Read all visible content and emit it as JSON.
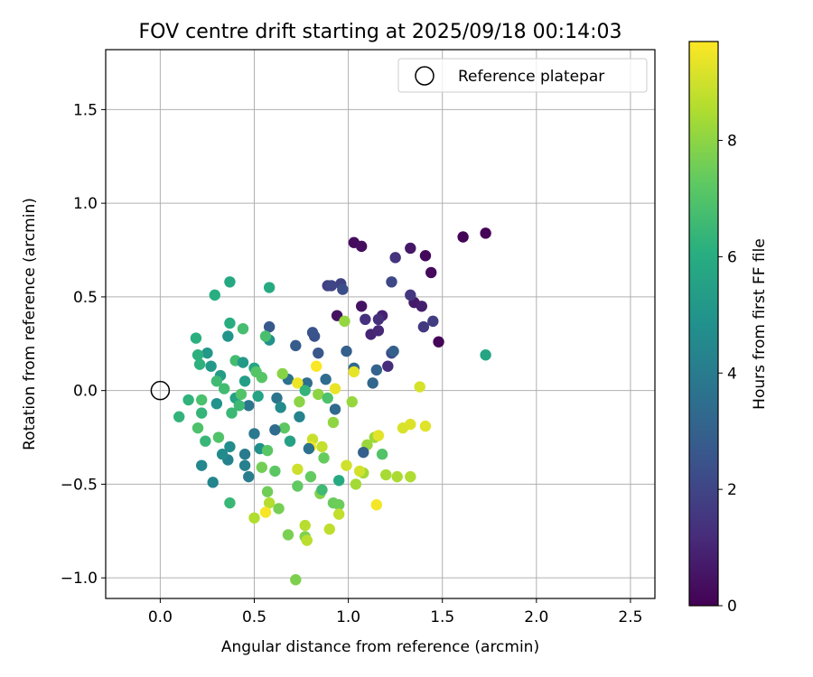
{
  "chart_data": {
    "type": "scatter",
    "title": "FOV centre drift starting at 2025/09/18 00:14:03",
    "xlabel": "Angular distance from reference (arcmin)",
    "ylabel": "Rotation from reference (arcmin)",
    "xlim": [
      -0.29,
      2.63
    ],
    "ylim": [
      -1.11,
      1.82
    ],
    "xticks": [
      0.0,
      0.5,
      1.0,
      1.5,
      2.0,
      2.5
    ],
    "yticks": [
      -1.0,
      -0.5,
      0.0,
      0.5,
      1.0,
      1.5
    ],
    "xtick_labels": [
      "0.0",
      "0.5",
      "1.0",
      "1.5",
      "2.0",
      "2.5"
    ],
    "ytick_labels": [
      "−1.0",
      "−0.5",
      "0.0",
      "0.5",
      "1.0",
      "1.5"
    ],
    "grid": true,
    "legend": {
      "placement": "top-right",
      "entries": [
        "Reference platepar"
      ]
    },
    "reference_point": {
      "x": 0.0,
      "y": 0.0,
      "label": "Reference platepar"
    },
    "colorbar": {
      "label": "Hours from first FF file",
      "colormap": "viridis",
      "range": [
        0,
        9.7
      ],
      "ticks": [
        0,
        2,
        4,
        6,
        8
      ],
      "tick_labels": [
        "0",
        "2",
        "4",
        "6",
        "8"
      ]
    },
    "points": [
      {
        "x": 1.73,
        "y": 0.84,
        "t": 0.05
      },
      {
        "x": 1.61,
        "y": 0.82,
        "t": 0.1
      },
      {
        "x": 1.48,
        "y": 0.26,
        "t": 0.15
      },
      {
        "x": 1.41,
        "y": 0.72,
        "t": 0.2
      },
      {
        "x": 1.44,
        "y": 0.63,
        "t": 0.25
      },
      {
        "x": 1.03,
        "y": 0.79,
        "t": 0.3
      },
      {
        "x": 1.07,
        "y": 0.77,
        "t": 0.35
      },
      {
        "x": 0.94,
        "y": 0.4,
        "t": 0.4
      },
      {
        "x": 1.07,
        "y": 0.45,
        "t": 0.5
      },
      {
        "x": 1.33,
        "y": 0.76,
        "t": 0.6
      },
      {
        "x": 1.35,
        "y": 0.47,
        "t": 0.7
      },
      {
        "x": 1.39,
        "y": 0.45,
        "t": 0.8
      },
      {
        "x": 1.18,
        "y": 0.4,
        "t": 0.9
      },
      {
        "x": 1.12,
        "y": 0.3,
        "t": 1.0
      },
      {
        "x": 1.16,
        "y": 0.32,
        "t": 1.1
      },
      {
        "x": 1.21,
        "y": 0.13,
        "t": 1.2
      },
      {
        "x": 1.16,
        "y": 0.38,
        "t": 1.3
      },
      {
        "x": 1.09,
        "y": 0.38,
        "t": 1.35
      },
      {
        "x": 1.25,
        "y": 0.71,
        "t": 1.4
      },
      {
        "x": 1.33,
        "y": 0.51,
        "t": 1.5
      },
      {
        "x": 1.4,
        "y": 0.34,
        "t": 1.6
      },
      {
        "x": 1.45,
        "y": 0.37,
        "t": 1.7
      },
      {
        "x": 0.89,
        "y": 0.56,
        "t": 1.8
      },
      {
        "x": 0.96,
        "y": 0.57,
        "t": 1.9
      },
      {
        "x": 0.91,
        "y": 0.56,
        "t": 2.0
      },
      {
        "x": 1.23,
        "y": 0.58,
        "t": 2.1
      },
      {
        "x": 1.23,
        "y": 0.2,
        "t": 2.2
      },
      {
        "x": 0.97,
        "y": 0.54,
        "t": 2.3
      },
      {
        "x": 0.82,
        "y": 0.29,
        "t": 2.4
      },
      {
        "x": 0.81,
        "y": 0.31,
        "t": 2.5
      },
      {
        "x": 0.84,
        "y": 0.2,
        "t": 2.6
      },
      {
        "x": 0.58,
        "y": 0.34,
        "t": 2.7
      },
      {
        "x": 0.72,
        "y": 0.24,
        "t": 2.8
      },
      {
        "x": 0.99,
        "y": 0.21,
        "t": 2.9
      },
      {
        "x": 1.24,
        "y": 0.21,
        "t": 3.0
      },
      {
        "x": 1.15,
        "y": 0.11,
        "t": 3.1
      },
      {
        "x": 1.13,
        "y": 0.04,
        "t": 3.2
      },
      {
        "x": 1.03,
        "y": 0.12,
        "t": 3.3
      },
      {
        "x": 0.88,
        "y": 0.06,
        "t": 3.4
      },
      {
        "x": 0.78,
        "y": 0.04,
        "t": 3.5
      },
      {
        "x": 0.68,
        "y": 0.06,
        "t": 3.6
      },
      {
        "x": 0.62,
        "y": -0.04,
        "t": 3.7
      },
      {
        "x": 0.47,
        "y": -0.08,
        "t": 3.8
      },
      {
        "x": 0.5,
        "y": -0.23,
        "t": 3.9
      },
      {
        "x": 0.45,
        "y": -0.34,
        "t": 4.0
      },
      {
        "x": 0.47,
        "y": -0.46,
        "t": 4.1
      },
      {
        "x": 0.45,
        "y": -0.4,
        "t": 4.2
      },
      {
        "x": 0.36,
        "y": -0.37,
        "t": 4.3
      },
      {
        "x": 0.28,
        "y": -0.49,
        "t": 4.4
      },
      {
        "x": 0.22,
        "y": -0.4,
        "t": 4.5
      },
      {
        "x": 0.33,
        "y": -0.34,
        "t": 4.6
      },
      {
        "x": 0.37,
        "y": -0.3,
        "t": 4.7
      },
      {
        "x": 0.53,
        "y": -0.31,
        "t": 4.8
      },
      {
        "x": 0.58,
        "y": 0.27,
        "t": 4.9
      },
      {
        "x": 0.36,
        "y": 0.29,
        "t": 5.0
      },
      {
        "x": 0.25,
        "y": 0.2,
        "t": 5.1
      },
      {
        "x": 0.27,
        "y": 0.13,
        "t": 5.2
      },
      {
        "x": 0.32,
        "y": 0.08,
        "t": 5.3
      },
      {
        "x": 0.45,
        "y": 0.05,
        "t": 5.4
      },
      {
        "x": 0.4,
        "y": -0.04,
        "t": 5.5
      },
      {
        "x": 0.52,
        "y": -0.03,
        "t": 5.6
      },
      {
        "x": 0.5,
        "y": 0.12,
        "t": 5.7
      },
      {
        "x": 0.37,
        "y": 0.58,
        "t": 5.8
      },
      {
        "x": 0.58,
        "y": 0.55,
        "t": 5.9
      },
      {
        "x": 0.37,
        "y": 0.36,
        "t": 6.0
      },
      {
        "x": 0.29,
        "y": 0.51,
        "t": 6.05
      },
      {
        "x": 0.19,
        "y": 0.28,
        "t": 6.1
      },
      {
        "x": 0.2,
        "y": 0.19,
        "t": 6.15
      },
      {
        "x": 0.21,
        "y": 0.14,
        "t": 6.2
      },
      {
        "x": 0.15,
        "y": -0.05,
        "t": 6.25
      },
      {
        "x": 0.1,
        "y": -0.14,
        "t": 6.3
      },
      {
        "x": 0.22,
        "y": -0.12,
        "t": 6.35
      },
      {
        "x": 0.24,
        "y": -0.27,
        "t": 6.4
      },
      {
        "x": 0.37,
        "y": -0.6,
        "t": 6.45
      },
      {
        "x": 0.38,
        "y": -0.12,
        "t": 6.5
      },
      {
        "x": 0.42,
        "y": -0.08,
        "t": 6.55
      },
      {
        "x": 0.3,
        "y": 0.05,
        "t": 6.6
      },
      {
        "x": 0.34,
        "y": 0.01,
        "t": 6.65
      },
      {
        "x": 0.4,
        "y": 0.16,
        "t": 6.7
      },
      {
        "x": 0.44,
        "y": 0.33,
        "t": 6.75
      },
      {
        "x": 0.56,
        "y": 0.29,
        "t": 6.8
      },
      {
        "x": 0.22,
        "y": -0.05,
        "t": 6.85
      },
      {
        "x": 0.2,
        "y": -0.2,
        "t": 6.9
      },
      {
        "x": 0.31,
        "y": -0.25,
        "t": 6.95
      },
      {
        "x": 0.43,
        "y": -0.02,
        "t": 7.0
      },
      {
        "x": 0.51,
        "y": 0.1,
        "t": 7.05
      },
      {
        "x": 0.54,
        "y": 0.07,
        "t": 7.1
      },
      {
        "x": 0.57,
        "y": -0.32,
        "t": 7.15
      },
      {
        "x": 0.61,
        "y": -0.43,
        "t": 7.2
      },
      {
        "x": 0.66,
        "y": -0.2,
        "t": 7.25
      },
      {
        "x": 0.73,
        "y": -0.51,
        "t": 7.3
      },
      {
        "x": 0.8,
        "y": -0.46,
        "t": 7.35
      },
      {
        "x": 0.87,
        "y": -0.36,
        "t": 7.4
      },
      {
        "x": 0.92,
        "y": -0.6,
        "t": 7.45
      },
      {
        "x": 0.95,
        "y": -0.61,
        "t": 7.5
      },
      {
        "x": 0.57,
        "y": -0.54,
        "t": 7.55
      },
      {
        "x": 0.54,
        "y": -0.41,
        "t": 7.6
      },
      {
        "x": 0.63,
        "y": -0.63,
        "t": 7.65
      },
      {
        "x": 0.68,
        "y": -0.77,
        "t": 7.7
      },
      {
        "x": 0.72,
        "y": -1.01,
        "t": 7.75
      },
      {
        "x": 0.77,
        "y": -0.78,
        "t": 7.8
      },
      {
        "x": 0.85,
        "y": -0.55,
        "t": 7.85
      },
      {
        "x": 0.65,
        "y": 0.09,
        "t": 7.9
      },
      {
        "x": 0.74,
        "y": -0.06,
        "t": 7.95
      },
      {
        "x": 0.84,
        "y": -0.02,
        "t": 8.0
      },
      {
        "x": 0.92,
        "y": -0.17,
        "t": 8.05
      },
      {
        "x": 0.98,
        "y": 0.37,
        "t": 8.1
      },
      {
        "x": 1.02,
        "y": -0.06,
        "t": 8.15
      },
      {
        "x": 1.1,
        "y": -0.29,
        "t": 8.2
      },
      {
        "x": 1.14,
        "y": -0.25,
        "t": 8.25
      },
      {
        "x": 1.08,
        "y": -0.44,
        "t": 8.3
      },
      {
        "x": 1.04,
        "y": -0.5,
        "t": 8.35
      },
      {
        "x": 1.2,
        "y": -0.45,
        "t": 8.4
      },
      {
        "x": 1.26,
        "y": -0.46,
        "t": 8.45
      },
      {
        "x": 1.33,
        "y": -0.46,
        "t": 8.5
      },
      {
        "x": 0.5,
        "y": -0.68,
        "t": 8.55
      },
      {
        "x": 0.58,
        "y": -0.6,
        "t": 8.6
      },
      {
        "x": 0.77,
        "y": -0.72,
        "t": 8.65
      },
      {
        "x": 0.78,
        "y": -0.8,
        "t": 8.7
      },
      {
        "x": 0.9,
        "y": -0.74,
        "t": 8.75
      },
      {
        "x": 0.95,
        "y": -0.66,
        "t": 8.8
      },
      {
        "x": 0.86,
        "y": -0.3,
        "t": 8.85
      },
      {
        "x": 0.81,
        "y": -0.26,
        "t": 8.9
      },
      {
        "x": 0.73,
        "y": -0.42,
        "t": 8.95
      },
      {
        "x": 0.99,
        "y": -0.4,
        "t": 9.0
      },
      {
        "x": 1.06,
        "y": -0.43,
        "t": 9.05
      },
      {
        "x": 1.38,
        "y": 0.02,
        "t": 9.1
      },
      {
        "x": 1.29,
        "y": -0.2,
        "t": 9.15
      },
      {
        "x": 1.33,
        "y": -0.18,
        "t": 9.2
      },
      {
        "x": 1.41,
        "y": -0.19,
        "t": 9.25
      },
      {
        "x": 1.16,
        "y": -0.24,
        "t": 9.3
      },
      {
        "x": 1.03,
        "y": 0.1,
        "t": 9.35
      },
      {
        "x": 0.93,
        "y": 0.01,
        "t": 9.4
      },
      {
        "x": 0.73,
        "y": 0.04,
        "t": 9.45
      },
      {
        "x": 0.8,
        "y": -0.3,
        "t": 9.5
      },
      {
        "x": 1.15,
        "y": -0.61,
        "t": 9.55
      },
      {
        "x": 0.56,
        "y": -0.65,
        "t": 9.6
      },
      {
        "x": 0.83,
        "y": 0.13,
        "t": 9.65
      },
      {
        "x": 1.73,
        "y": 0.19,
        "t": 5.7
      },
      {
        "x": 0.44,
        "y": 0.15,
        "t": 5.2
      },
      {
        "x": 0.3,
        "y": -0.07,
        "t": 4.9
      },
      {
        "x": 0.64,
        "y": -0.09,
        "t": 4.6
      },
      {
        "x": 0.74,
        "y": -0.14,
        "t": 4.3
      },
      {
        "x": 0.79,
        "y": -0.31,
        "t": 3.6
      },
      {
        "x": 0.93,
        "y": -0.1,
        "t": 3.3
      },
      {
        "x": 1.08,
        "y": -0.33,
        "t": 3.0
      },
      {
        "x": 0.61,
        "y": -0.21,
        "t": 3.4
      },
      {
        "x": 0.69,
        "y": -0.27,
        "t": 5.5
      },
      {
        "x": 0.86,
        "y": -0.53,
        "t": 6.6
      },
      {
        "x": 0.95,
        "y": -0.48,
        "t": 5.9
      },
      {
        "x": 1.18,
        "y": -0.34,
        "t": 7.0
      },
      {
        "x": 0.89,
        "y": -0.04,
        "t": 6.9
      },
      {
        "x": 0.77,
        "y": 0.0,
        "t": 6.3
      }
    ]
  }
}
